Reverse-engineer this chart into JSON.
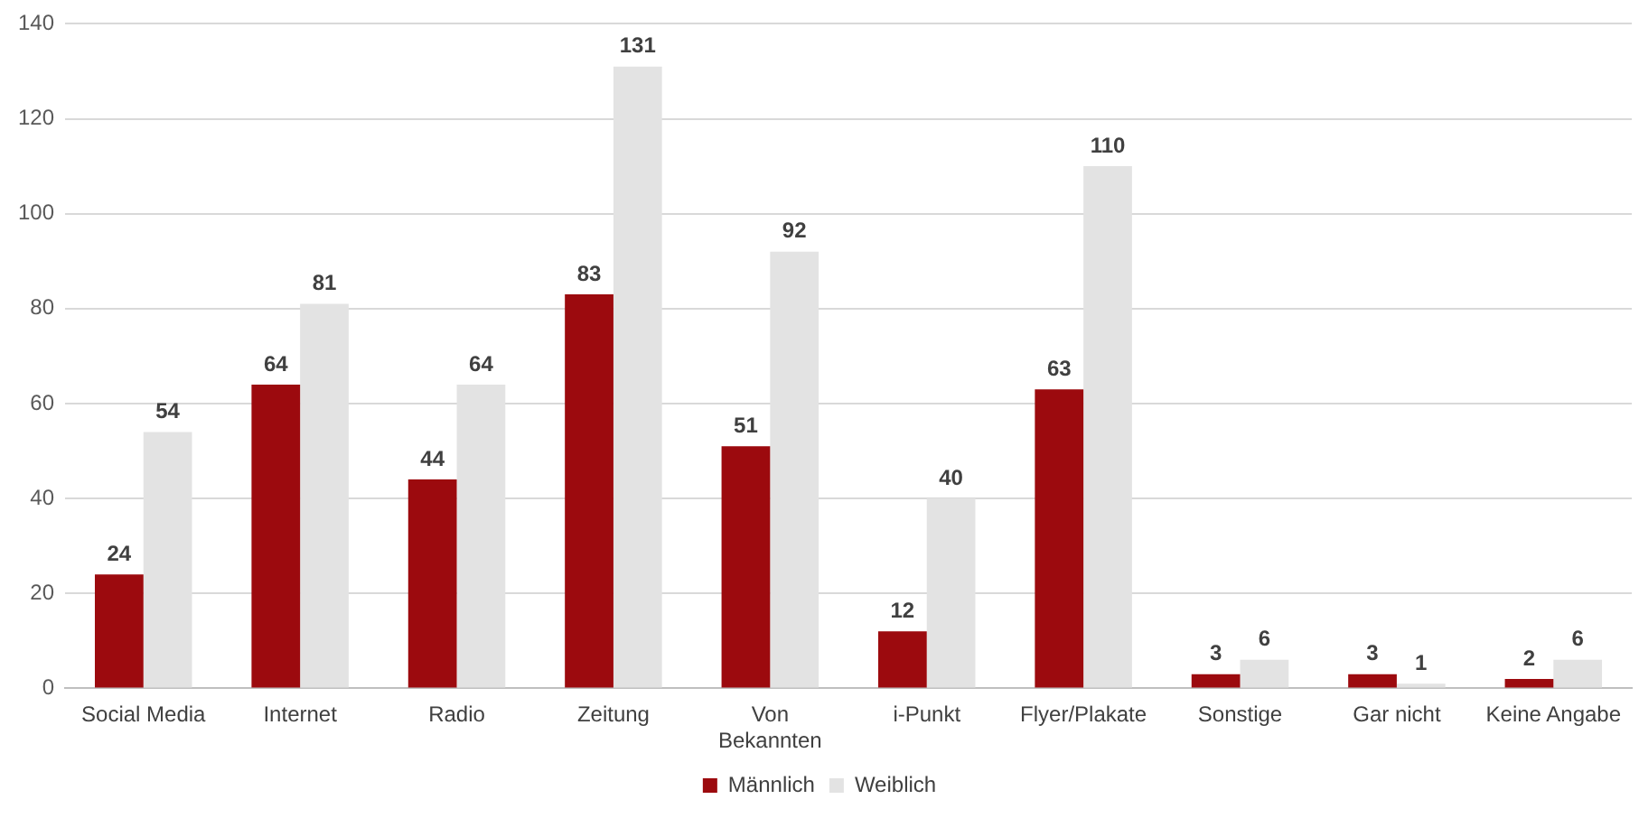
{
  "chart_data": {
    "type": "bar",
    "categories": [
      "Social Media",
      "Internet",
      "Radio",
      "Zeitung",
      "Von\nBekannten",
      "i-Punkt",
      "Flyer/Plakate",
      "Sonstige",
      "Gar nicht",
      "Keine Angabe"
    ],
    "series": [
      {
        "name": "Männlich",
        "color": "#9c0a0e",
        "values": [
          24,
          64,
          44,
          83,
          51,
          12,
          63,
          3,
          3,
          2
        ]
      },
      {
        "name": "Weiblich",
        "color": "#e3e3e3",
        "values": [
          54,
          81,
          64,
          131,
          92,
          40,
          110,
          6,
          1,
          6
        ]
      }
    ],
    "ylim": [
      0,
      140
    ],
    "yticks": [
      0,
      20,
      40,
      60,
      80,
      100,
      120,
      140
    ],
    "grid": "y",
    "legend": "bottom",
    "data_labels": true
  }
}
